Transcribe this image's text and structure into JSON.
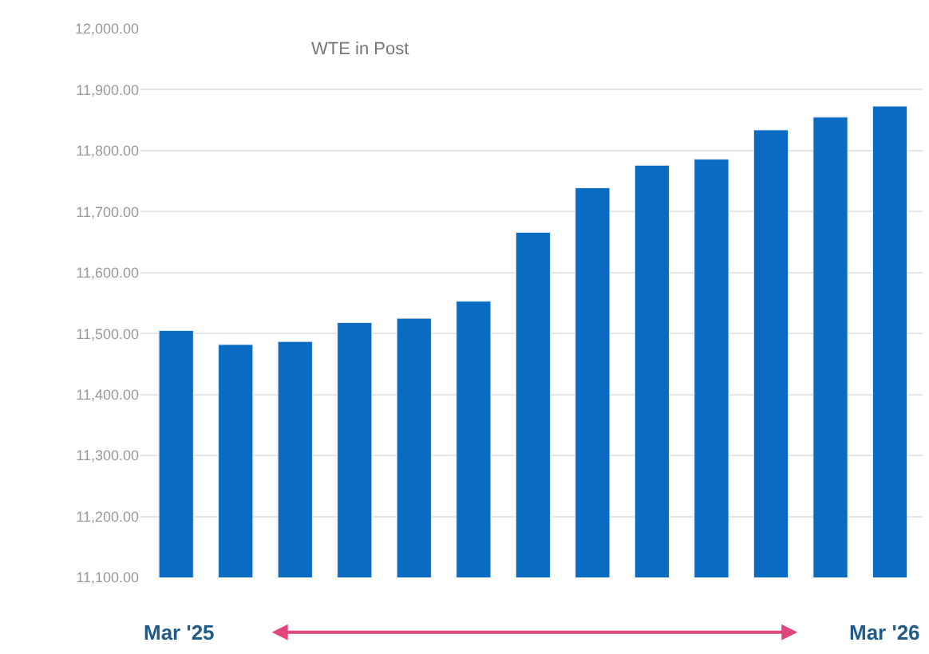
{
  "chart_data": {
    "type": "bar",
    "title": "WTE in Post",
    "categories": [
      null,
      null,
      null,
      null,
      null,
      null,
      null,
      null,
      null,
      null,
      null,
      null,
      null
    ],
    "values": [
      11505,
      11482,
      11487,
      11518,
      11525,
      11553,
      11666,
      11739,
      11776,
      11786,
      11834,
      11855,
      11873
    ],
    "color": "#0a6bc2",
    "ylim": [
      11100,
      12000
    ],
    "yticks": [
      {
        "value": 11100,
        "label": "11,100.00"
      },
      {
        "value": 11200,
        "label": "11,200.00"
      },
      {
        "value": 11300,
        "label": "11,300.00"
      },
      {
        "value": 11400,
        "label": "11,400.00"
      },
      {
        "value": 11500,
        "label": "11,500.00"
      },
      {
        "value": 11600,
        "label": "11,600.00"
      },
      {
        "value": 11700,
        "label": "11,700.00"
      },
      {
        "value": 11800,
        "label": "11,800.00"
      },
      {
        "value": 11900,
        "label": "11,900.00"
      },
      {
        "value": 12000,
        "label": "12,000.00"
      }
    ],
    "grid": "y",
    "annotations": [
      "Mar '25",
      "Mar '26"
    ]
  }
}
